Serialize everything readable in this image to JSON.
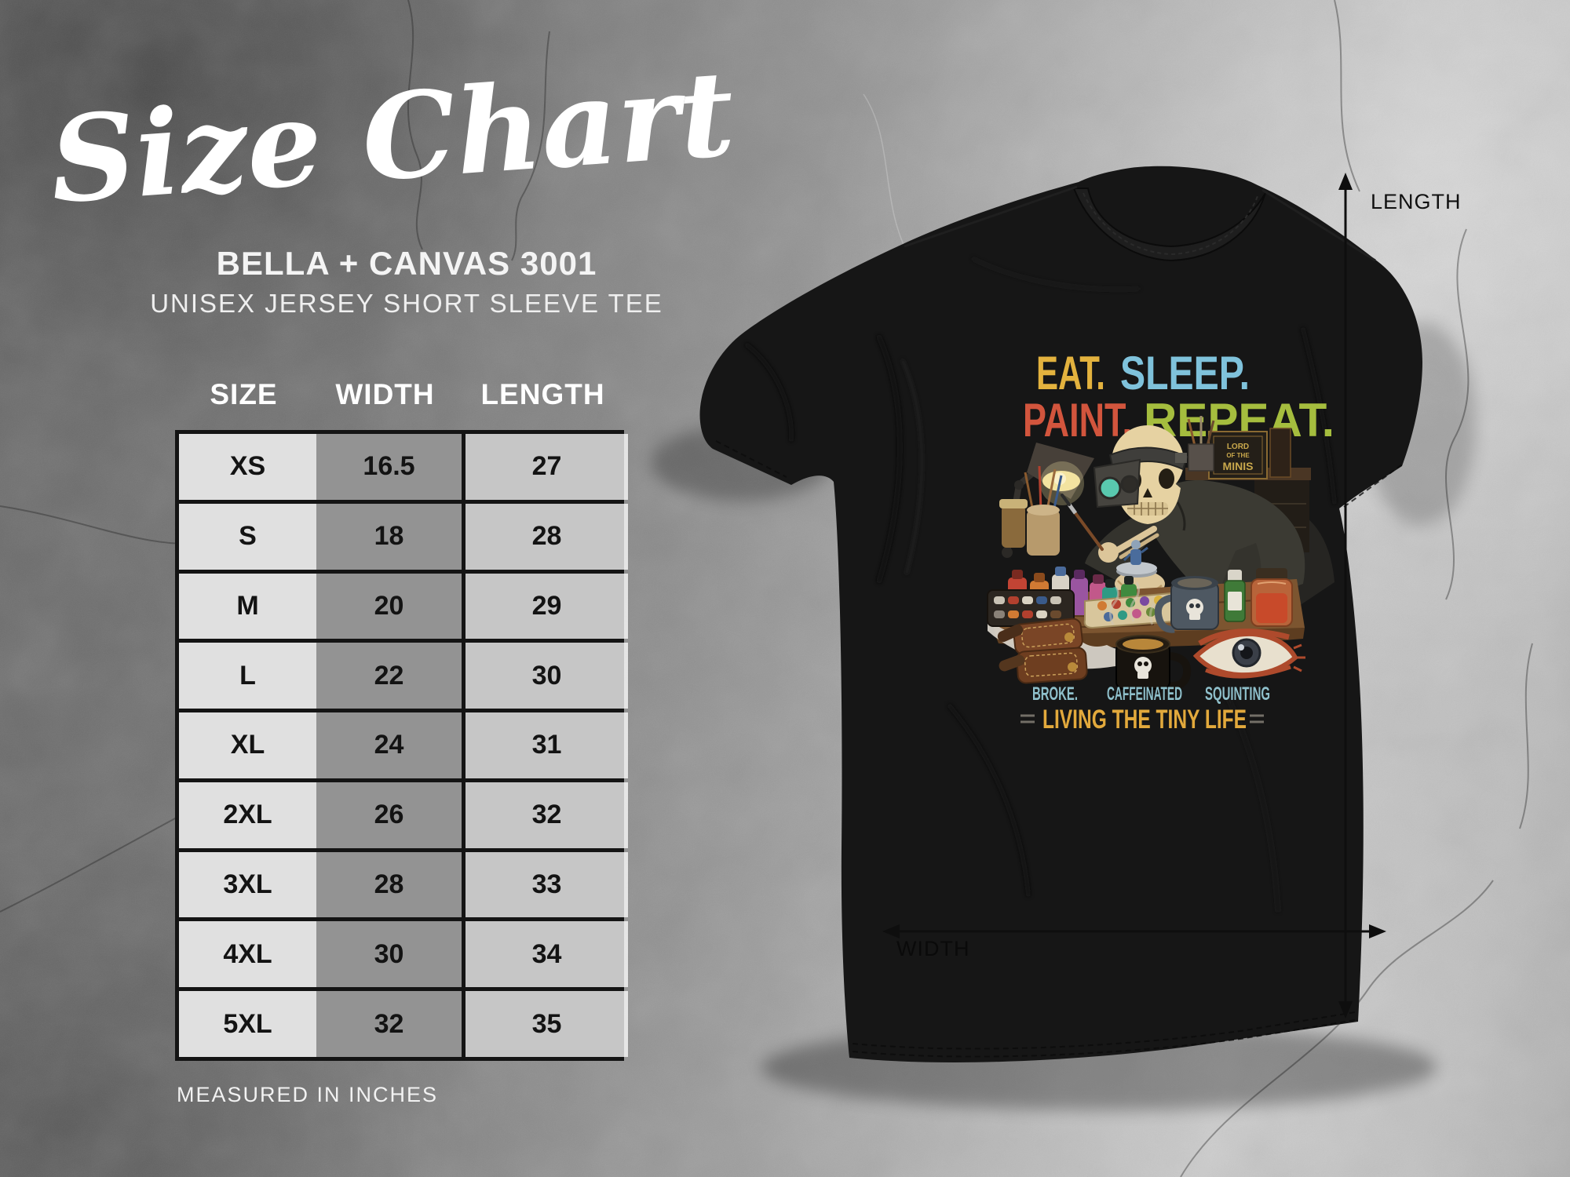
{
  "title": {
    "script": "Size Chart",
    "brand": "BELLA + CANVAS 3001",
    "product": "UNISEX JERSEY SHORT SLEEVE TEE"
  },
  "table": {
    "headers": [
      "SIZE",
      "WIDTH",
      "LENGTH"
    ],
    "rows": [
      {
        "size": "XS",
        "width": "16.5",
        "length": "27"
      },
      {
        "size": "S",
        "width": "18",
        "length": "28"
      },
      {
        "size": "M",
        "width": "20",
        "length": "29"
      },
      {
        "size": "L",
        "width": "22",
        "length": "30"
      },
      {
        "size": "XL",
        "width": "24",
        "length": "31"
      },
      {
        "size": "2XL",
        "width": "26",
        "length": "32"
      },
      {
        "size": "3XL",
        "width": "28",
        "length": "33"
      },
      {
        "size": "4XL",
        "width": "30",
        "length": "34"
      },
      {
        "size": "5XL",
        "width": "32",
        "length": "35"
      }
    ],
    "footnote": "MEASURED IN INCHES"
  },
  "shirt": {
    "color": "#161616",
    "measure_labels": {
      "length": "LENGTH",
      "width": "WIDTH"
    },
    "design": {
      "line1": [
        {
          "text": "EAT.",
          "color": "#E3B23E"
        },
        {
          "text": "SLEEP.",
          "color": "#7FC2DB"
        }
      ],
      "line2": [
        {
          "text": "PAINT.",
          "color": "#D2553D"
        },
        {
          "text": "REPEAT.",
          "color": "#A5BD3E"
        }
      ],
      "book_lines": [
        "LORD",
        "OF THE",
        "MINIS"
      ],
      "captions": [
        {
          "text": "BROKE.",
          "color": "#8FC0CB"
        },
        {
          "text": "CAFFEINATED",
          "color": "#8FC0CB"
        },
        {
          "text": "SQUINTING",
          "color": "#8FC0CB"
        }
      ],
      "tagline": {
        "text": "LIVING THE TINY LIFE",
        "color": "#E2A93C"
      }
    }
  },
  "chart_data": {
    "type": "table",
    "title": "Size Chart",
    "brand": "BELLA + CANVAS 3001",
    "product": "UNISEX JERSEY SHORT SLEEVE TEE",
    "columns": [
      "SIZE",
      "WIDTH",
      "LENGTH"
    ],
    "rows": [
      [
        "XS",
        16.5,
        27
      ],
      [
        "S",
        18,
        28
      ],
      [
        "M",
        20,
        29
      ],
      [
        "L",
        22,
        30
      ],
      [
        "XL",
        24,
        31
      ],
      [
        "2XL",
        26,
        32
      ],
      [
        "3XL",
        28,
        33
      ],
      [
        "4XL",
        30,
        34
      ],
      [
        "5XL",
        32,
        35
      ]
    ],
    "units": "MEASURED IN INCHES"
  }
}
